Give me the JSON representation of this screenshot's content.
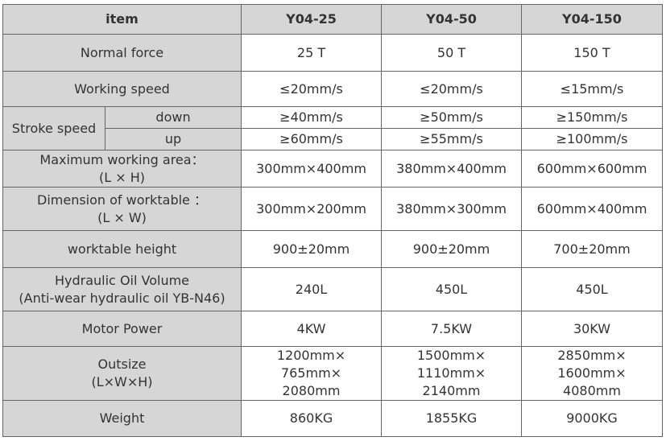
{
  "table": {
    "header": [
      "item",
      "Y04-25",
      "Y04-50",
      "Y04-150"
    ],
    "rows": [
      {
        "label": [
          "Normal force"
        ],
        "values": [
          [
            "25 T"
          ],
          [
            "50 T"
          ],
          [
            "150 T"
          ]
        ]
      },
      {
        "label": [
          "Working speed"
        ],
        "values": [
          [
            "≤20mm/s"
          ],
          [
            "≤20mm/s"
          ],
          [
            "≤15mm/s"
          ]
        ]
      },
      {
        "group": "Stroke speed",
        "subrows": [
          {
            "label": "down",
            "values": [
              [
                "≥40mm/s"
              ],
              [
                "≥50mm/s"
              ],
              [
                "≥150mm/s"
              ]
            ]
          },
          {
            "label": "up",
            "values": [
              [
                "≥60mm/s"
              ],
              [
                "≥55mm/s"
              ],
              [
                "≥100mm/s"
              ]
            ]
          }
        ]
      },
      {
        "label": [
          "Maximum working area：",
          "(L × H)"
        ],
        "values": [
          [
            "300mm×400mm"
          ],
          [
            "380mm×400mm"
          ],
          [
            "600mm×600mm"
          ]
        ]
      },
      {
        "label": [
          "Dimension of worktable ：",
          "(L × W)"
        ],
        "values": [
          [
            "300mm×200mm"
          ],
          [
            "380mm×300mm"
          ],
          [
            "600mm×400mm"
          ]
        ]
      },
      {
        "label": [
          "worktable height"
        ],
        "values": [
          [
            "900±20mm"
          ],
          [
            "900±20mm"
          ],
          [
            "700±20mm"
          ]
        ]
      },
      {
        "label": [
          "Hydraulic Oil Volume",
          "(Anti-wear hydraulic oil YB-N46)"
        ],
        "values": [
          [
            "240L"
          ],
          [
            "450L"
          ],
          [
            "450L"
          ]
        ]
      },
      {
        "label": [
          "Motor Power"
        ],
        "values": [
          [
            "4KW"
          ],
          [
            "7.5KW"
          ],
          [
            "30KW"
          ]
        ]
      },
      {
        "label": [
          "Outsize",
          "(L×W×H)"
        ],
        "values": [
          [
            "1200mm×",
            "765mm×",
            "2080mm"
          ],
          [
            "1500mm×",
            "1110mm×",
            "2140mm"
          ],
          [
            "2850mm×",
            "1600mm×",
            "4080mm"
          ]
        ]
      },
      {
        "label": [
          "Weight"
        ],
        "values": [
          [
            "860KG"
          ],
          [
            "1855KG"
          ],
          [
            "9000KG"
          ]
        ]
      }
    ]
  }
}
